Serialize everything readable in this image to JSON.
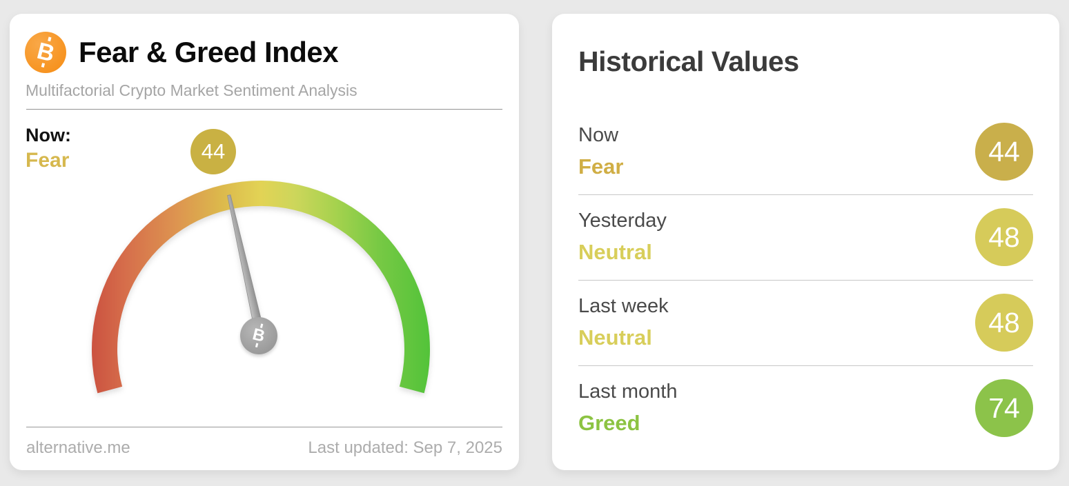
{
  "page": {
    "background": "#e9e9e9"
  },
  "gauge_card": {
    "title": "Fear & Greed Index",
    "subtitle": "Multifactorial Crypto Market Sentiment Analysis",
    "now": {
      "label": "Now:",
      "sentiment": "Fear",
      "value": "44",
      "sentiment_color": "#d6b84e",
      "badge_color": "#c9b143"
    },
    "footer": {
      "source": "alternative.me",
      "last_updated": "Last updated: Sep 7, 2025"
    }
  },
  "historical_card": {
    "title": "Historical Values",
    "rows": [
      {
        "label": "Now",
        "sentiment": "Fear",
        "value": "44",
        "sentiment_color": "#d0ae45",
        "badge_color": "#c9af4b"
      },
      {
        "label": "Yesterday",
        "sentiment": "Neutral",
        "value": "48",
        "sentiment_color": "#d8ce5a",
        "badge_color": "#d6cb5a"
      },
      {
        "label": "Last week",
        "sentiment": "Neutral",
        "value": "48",
        "sentiment_color": "#d8ce5a",
        "badge_color": "#d6cb5a"
      },
      {
        "label": "Last month",
        "sentiment": "Greed",
        "value": "74",
        "sentiment_color": "#8cc342",
        "badge_color": "#8cc34a"
      }
    ]
  },
  "chart_data": {
    "type": "gauge",
    "title": "Fear & Greed Index",
    "value": 44,
    "min": 0,
    "max": 100,
    "current_label": "Fear",
    "arc_degrees": 210,
    "color_scale": [
      "#cb5240",
      "#d66e4b",
      "#dd9450",
      "#dcb84c",
      "#e2d355",
      "#cdd65b",
      "#a6d24e",
      "#77c944",
      "#53c33a"
    ]
  }
}
